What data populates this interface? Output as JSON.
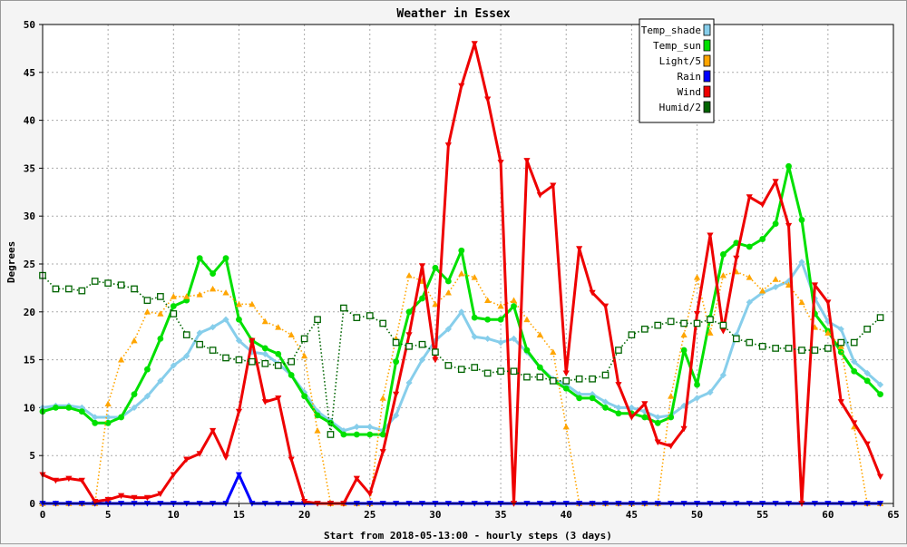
{
  "chart_data": {
    "type": "line",
    "title": "Weather in Essex",
    "xlabel": "Start from 2018-05-13:00 - hourly steps (3 days)",
    "ylabel": "Degrees",
    "xlim": [
      0,
      65
    ],
    "ylim": [
      0,
      50
    ],
    "xticks": [
      0,
      5,
      10,
      15,
      20,
      25,
      30,
      35,
      40,
      45,
      50,
      55,
      60,
      65
    ],
    "yticks": [
      0,
      5,
      10,
      15,
      20,
      25,
      30,
      35,
      40,
      45,
      50
    ],
    "grid": true,
    "legend_position": "top-right",
    "x": [
      0,
      1,
      2,
      3,
      4,
      5,
      6,
      7,
      8,
      9,
      10,
      11,
      12,
      13,
      14,
      15,
      16,
      17,
      18,
      19,
      20,
      21,
      22,
      23,
      24,
      25,
      26,
      27,
      28,
      29,
      30,
      31,
      32,
      33,
      34,
      35,
      36,
      37,
      38,
      39,
      40,
      41,
      42,
      43,
      44,
      45,
      46,
      47,
      48,
      49,
      50,
      51,
      52,
      53,
      54,
      55,
      56,
      57,
      58,
      59,
      60,
      61,
      62,
      63,
      64
    ],
    "series": [
      {
        "name": "Temp_shade",
        "color": "#87ceeb",
        "style": "solid",
        "marker": "diamond",
        "values": [
          10,
          10.2,
          10.2,
          10,
          9,
          9,
          9,
          10,
          11.2,
          12.8,
          14.4,
          15.4,
          17.8,
          18.4,
          19.2,
          17,
          15.8,
          15.6,
          14.6,
          13.4,
          11.6,
          9.6,
          8.6,
          7.6,
          8,
          8,
          7.6,
          9.2,
          12.6,
          15,
          17,
          18.2,
          20,
          17.4,
          17.2,
          16.8,
          17.2,
          15.8,
          14.2,
          13,
          12.4,
          11.4,
          11.4,
          10.6,
          10,
          10,
          9.6,
          9,
          9.2,
          10.2,
          11,
          11.6,
          13.4,
          17.6,
          21,
          22,
          22.6,
          23.2,
          25.2,
          21.4,
          19,
          18.2,
          14.8,
          13.6,
          12.4
        ]
      },
      {
        "name": "Temp_sun",
        "color": "#00e000",
        "style": "solid",
        "marker": "circle",
        "values": [
          9.6,
          10,
          10,
          9.6,
          8.4,
          8.4,
          9,
          11.4,
          14,
          17.2,
          20.6,
          21.2,
          25.6,
          24,
          25.6,
          19.2,
          17,
          16.2,
          15.6,
          13.4,
          11.2,
          9.2,
          8.4,
          7.2,
          7.2,
          7.2,
          7.2,
          14.8,
          20,
          21.4,
          24.6,
          23.2,
          26.4,
          19.4,
          19.2,
          19.2,
          20.6,
          16,
          14.2,
          12.8,
          12,
          11,
          11,
          10,
          9.4,
          9.4,
          9,
          8.4,
          9,
          16,
          12.4,
          19.4,
          26,
          27.2,
          26.8,
          27.6,
          29.2,
          35.2,
          29.6,
          19.8,
          18,
          15.8,
          13.8,
          12.8,
          11.4
        ]
      },
      {
        "name": "Light/5",
        "color": "#ffa500",
        "style": "dotted",
        "marker": "triangle-up",
        "values": [
          0,
          0,
          0,
          0,
          0,
          10.4,
          15,
          17,
          20,
          19.8,
          21.6,
          21.6,
          21.8,
          22.4,
          22,
          20.8,
          20.8,
          19,
          18.4,
          17.6,
          15.4,
          7.6,
          0,
          0,
          0,
          0,
          11,
          17.2,
          23.8,
          23.2,
          20.8,
          22,
          24,
          23.6,
          21.2,
          20.6,
          21.2,
          19.2,
          17.6,
          15.8,
          8,
          0,
          0,
          0,
          0,
          0,
          0,
          0,
          11.2,
          17.6,
          23.6,
          17.8,
          23.8,
          24.2,
          23.6,
          22.2,
          23.4,
          22.8,
          21,
          18.4,
          17.8,
          16.4,
          8,
          0,
          0
        ]
      },
      {
        "name": "Rain",
        "color": "#0000ff",
        "style": "solid",
        "marker": "triangle-down",
        "values": [
          0,
          0,
          0,
          0,
          0,
          0,
          0,
          0,
          0,
          0,
          0,
          0,
          0,
          0,
          0,
          3,
          0,
          0,
          0,
          0,
          0,
          0,
          0,
          0,
          0,
          0,
          0,
          0,
          0,
          0,
          0,
          0,
          0,
          0,
          0,
          0,
          0,
          0,
          0,
          0,
          0,
          0,
          0,
          0,
          0,
          0,
          0,
          0,
          0,
          0,
          0,
          0,
          0,
          0,
          0,
          0,
          0,
          0,
          0,
          0,
          0,
          0,
          0,
          0,
          0
        ]
      },
      {
        "name": "Wind",
        "color": "#ee0000",
        "style": "solid",
        "marker": "triangle-down",
        "values": [
          3,
          2.4,
          2.6,
          2.4,
          0.2,
          0.4,
          0.8,
          0.6,
          0.6,
          1,
          3,
          4.6,
          5.2,
          7.6,
          4.8,
          9.6,
          17,
          10.6,
          11,
          4.6,
          0.2,
          0,
          0,
          0,
          2.6,
          1,
          5.4,
          11.4,
          17.6,
          24.8,
          15,
          37.4,
          43.6,
          48,
          42.2,
          35.6,
          0,
          35.8,
          32.2,
          33.2,
          13.6,
          26.6,
          22,
          20.6,
          12.4,
          9,
          10.4,
          6.4,
          6,
          7.8,
          19.8,
          28,
          18,
          25.6,
          32,
          31.2,
          33.6,
          29,
          0,
          22.8,
          21,
          10.6,
          8.4,
          6.2,
          2.8
        ]
      },
      {
        "name": "Humid/2",
        "color": "#006400",
        "style": "dotted",
        "marker": "square",
        "values": [
          23.8,
          22.4,
          22.4,
          22.2,
          23.2,
          23,
          22.8,
          22.4,
          21.2,
          21.6,
          19.8,
          17.6,
          16.6,
          16,
          15.2,
          15,
          14.8,
          14.6,
          14.4,
          14.8,
          17.2,
          19.2,
          7.2,
          20.4,
          19.4,
          19.6,
          18.8,
          16.8,
          16.4,
          16.6,
          15.8,
          14.4,
          14,
          14.2,
          13.6,
          13.8,
          13.8,
          13.2,
          13.2,
          12.8,
          12.8,
          13,
          13,
          13.4,
          16,
          17.6,
          18.2,
          18.6,
          19,
          18.8,
          18.8,
          19.2,
          18.6,
          17.2,
          16.8,
          16.4,
          16.2,
          16.2,
          16,
          16,
          16.2,
          16.8,
          16.8,
          18.2,
          19.4
        ]
      }
    ]
  }
}
